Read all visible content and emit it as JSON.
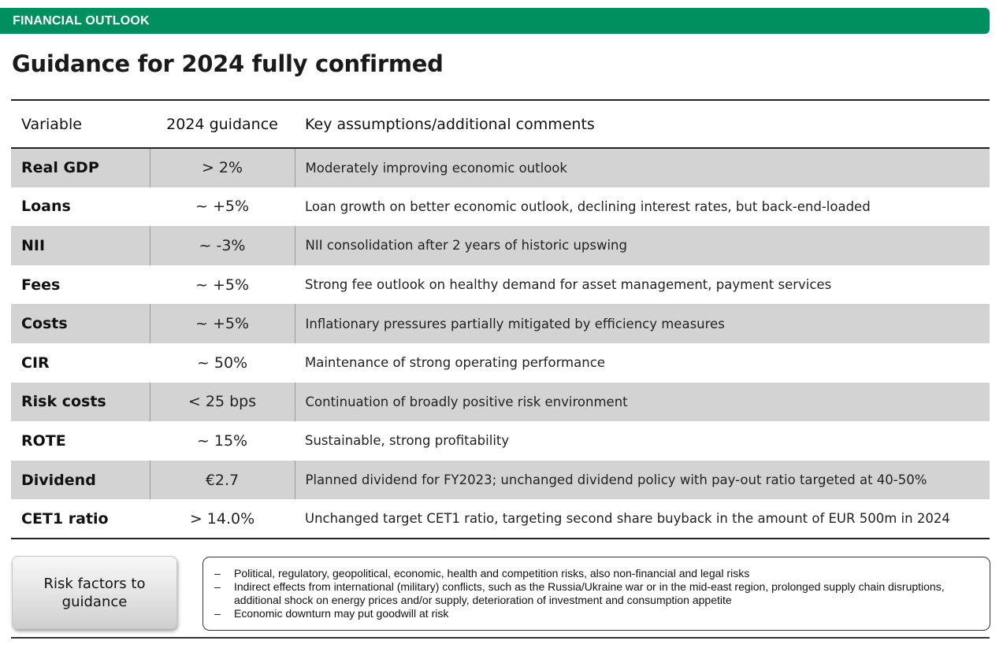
{
  "banner": {
    "label": "FINANCIAL OUTLOOK"
  },
  "title": "Guidance for 2024 fully confirmed",
  "table": {
    "headers": [
      "Variable",
      "2024 guidance",
      "Key assumptions/additional comments"
    ],
    "rows": [
      {
        "variable": "Real GDP",
        "guidance": "> 2%",
        "comment": "Moderately improving economic outlook"
      },
      {
        "variable": "Loans",
        "guidance": "~ +5%",
        "comment": "Loan growth on better economic outlook, declining interest rates, but back-end-loaded"
      },
      {
        "variable": "NII",
        "guidance": "~ -3%",
        "comment": "NII consolidation after 2 years of historic upswing"
      },
      {
        "variable": "Fees",
        "guidance": "~ +5%",
        "comment": "Strong fee outlook on healthy demand for asset management, payment services"
      },
      {
        "variable": "Costs",
        "guidance": "~ +5%",
        "comment": "Inflationary pressures partially mitigated by efficiency measures"
      },
      {
        "variable": "CIR",
        "guidance": "~ 50%",
        "comment": "Maintenance of strong operating performance"
      },
      {
        "variable": "Risk costs",
        "guidance": "< 25 bps",
        "comment": "Continuation of broadly positive risk environment"
      },
      {
        "variable": "ROTE",
        "guidance": "~ 15%",
        "comment": "Sustainable, strong profitability"
      },
      {
        "variable": "Dividend",
        "guidance": "€2.7",
        "comment": "Planned dividend for FY2023; unchanged dividend policy with pay-out ratio targeted at 40-50%"
      },
      {
        "variable": "CET1 ratio",
        "guidance": "> 14.0%",
        "comment": "Unchanged target CET1 ratio, targeting second share buyback in the amount of EUR 500m in 2024"
      }
    ]
  },
  "risk_factors": {
    "button_label_line1": "Risk factors to",
    "button_label_line2": "guidance",
    "bullet_marker": "–",
    "items": [
      "Political, regulatory, geopolitical, economic, health and competition risks, also non-financial and legal risks",
      "Indirect effects from international (military) conflicts, such as the Russia/Ukraine war or in the mid-east region, prolonged supply chain disruptions, additional shock on energy prices and/or supply, deterioration of investment and consumption appetite",
      "Economic downturn may put goodwill at risk"
    ]
  },
  "colors": {
    "banner": "#008f5f",
    "row_shade": "#d3d3d3"
  }
}
